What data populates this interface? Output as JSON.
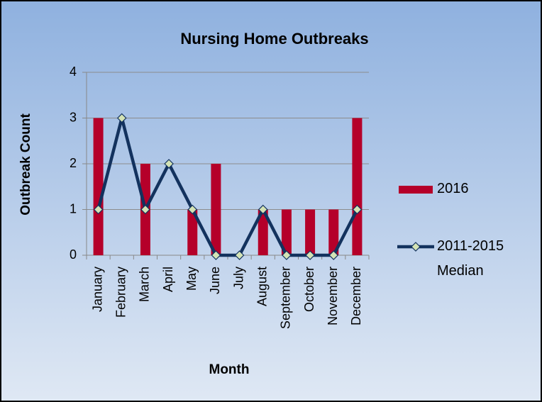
{
  "chart_data": {
    "type": "bar",
    "title": "Nursing Home Outbreaks",
    "x_label": "Month",
    "y_label": "Outbreak Count",
    "categories": [
      "January",
      "February",
      "March",
      "April",
      "May",
      "June",
      "July",
      "August",
      "September",
      "October",
      "November",
      "December"
    ],
    "series": [
      {
        "name": "2016",
        "type": "bar",
        "color": "#b5002a",
        "values": [
          3,
          0,
          2,
          0,
          1,
          2,
          0,
          1,
          1,
          1,
          1,
          3
        ]
      },
      {
        "name": "2011-2015 Median",
        "type": "line",
        "color": "#13325e",
        "marker_color": "#d4e3b5",
        "values": [
          1,
          3,
          1,
          2,
          1,
          0,
          0,
          1,
          0,
          0,
          0,
          1
        ]
      }
    ],
    "ylim": [
      0,
      4
    ],
    "yticks": [
      0,
      1,
      2,
      3,
      4
    ],
    "grid": true,
    "legend": "right"
  }
}
